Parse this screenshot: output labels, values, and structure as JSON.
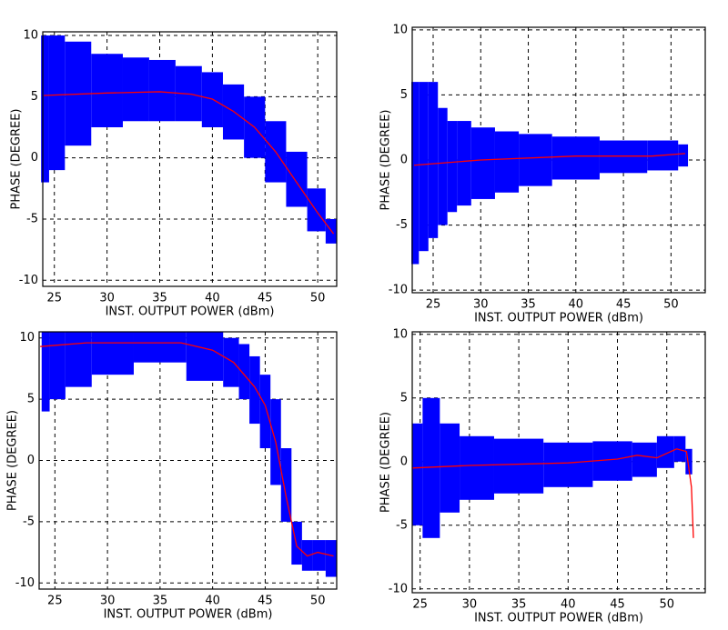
{
  "chart_data": [
    {
      "type": "scatter",
      "x_label": "INST. OUTPUT POWER (dBm)",
      "y_label": "PHASE (DEGREE)",
      "xlim": [
        23.9,
        51.8
      ],
      "ylim": [
        -10.5,
        10.3
      ],
      "xticks": [
        25,
        30,
        35,
        40,
        45,
        50
      ],
      "yticks": [
        -10,
        -5,
        0,
        5,
        10
      ],
      "grid": true,
      "cloud": {
        "color": "#0000ff",
        "x": [
          24,
          25,
          27,
          30,
          33,
          35,
          38,
          40,
          42,
          44,
          46,
          48,
          50,
          51.5
        ],
        "low": [
          -2,
          -1,
          1,
          2.5,
          3,
          3,
          3,
          2.5,
          1.5,
          0,
          -2,
          -4,
          -6,
          -7
        ],
        "high": [
          10,
          10,
          9.5,
          8.5,
          8.2,
          8,
          7.5,
          7,
          6,
          5,
          3,
          0.5,
          -2.5,
          -5
        ]
      },
      "series": [
        {
          "color": "#ff0000",
          "x": [
            24,
            30,
            35,
            38,
            40,
            42,
            44,
            46,
            48,
            50,
            51.5
          ],
          "values": [
            5.1,
            5.3,
            5.4,
            5.2,
            4.8,
            3.8,
            2.5,
            0.5,
            -2,
            -4.5,
            -6.2
          ]
        }
      ]
    },
    {
      "type": "scatter",
      "x_label": "INST. OUTPUT POWER (dBm)",
      "y_label": "PHASE (DEGREE)",
      "xlim": [
        22.8,
        53.6
      ],
      "ylim": [
        -10.2,
        10.2
      ],
      "xticks": [
        25,
        30,
        35,
        40,
        45,
        50
      ],
      "yticks": [
        -10,
        -5,
        0,
        5,
        10
      ],
      "grid": true,
      "cloud": {
        "color": "#0000ff",
        "x": [
          23,
          24,
          25,
          26,
          27,
          28,
          30,
          33,
          35,
          40,
          45,
          50,
          51.5
        ],
        "low": [
          -8,
          -7,
          -6,
          -5,
          -4,
          -3.5,
          -3,
          -2.5,
          -2,
          -1.5,
          -1,
          -0.8,
          -0.5
        ],
        "high": [
          6,
          6,
          6,
          4,
          3,
          3,
          2.5,
          2.2,
          2,
          1.8,
          1.5,
          1.5,
          1.2
        ]
      },
      "series": [
        {
          "color": "#ff0000",
          "x": [
            23,
            30,
            40,
            48,
            51.5
          ],
          "values": [
            -0.4,
            0,
            0.3,
            0.3,
            0.5
          ]
        }
      ]
    },
    {
      "type": "scatter",
      "x_label": "INST. OUTPUT POWER (dBm)",
      "y_label": "PHASE (DEGREE)",
      "xlim": [
        23.5,
        51.8
      ],
      "ylim": [
        -10.5,
        10.5
      ],
      "xticks": [
        25,
        30,
        35,
        40,
        45,
        50
      ],
      "yticks": [
        -10,
        -5,
        0,
        5,
        10
      ],
      "grid": true,
      "cloud": {
        "color": "#0000ff",
        "x": [
          24,
          25,
          27,
          30,
          35,
          40,
          42,
          43,
          44,
          45,
          46,
          47,
          48,
          49,
          50,
          51.5
        ],
        "low": [
          4,
          5,
          6,
          7,
          8,
          6.5,
          6,
          5,
          3,
          1,
          -2,
          -5,
          -8.5,
          -9,
          -9,
          -9.5
        ],
        "high": [
          10.5,
          10.5,
          10.5,
          10.5,
          10.5,
          10.5,
          10,
          9.5,
          8.5,
          7,
          5,
          1,
          -5,
          -6.5,
          -6.5,
          -6.5
        ]
      },
      "series": [
        {
          "color": "#ff0000",
          "x": [
            23.6,
            28,
            37,
            40,
            42,
            44,
            45,
            46,
            47,
            48,
            49,
            50,
            51.5
          ],
          "values": [
            9.3,
            9.6,
            9.6,
            9,
            8,
            6,
            4.5,
            1.5,
            -3,
            -7,
            -7.8,
            -7.5,
            -7.8
          ]
        }
      ]
    },
    {
      "type": "scatter",
      "x_label": "INST. OUTPUT POWER (dBm)",
      "y_label": "PHASE (DEGREE)",
      "xlim": [
        24.2,
        53.9
      ],
      "ylim": [
        -10.3,
        10.2
      ],
      "xticks": [
        25,
        30,
        35,
        40,
        45,
        50
      ],
      "yticks": [
        -10,
        -5,
        0,
        5,
        10
      ],
      "grid": true,
      "cloud": {
        "color": "#0000ff",
        "x": [
          24.5,
          26,
          28,
          30,
          35,
          40,
          45,
          48,
          50,
          51.5,
          52.3
        ],
        "low": [
          -5,
          -6,
          -4,
          -3,
          -2.5,
          -2,
          -1.5,
          -1.2,
          -0.5,
          0,
          -1
        ],
        "high": [
          3,
          5,
          3,
          2,
          1.8,
          1.5,
          1.6,
          1.5,
          2,
          2,
          1
        ]
      },
      "series": [
        {
          "color": "#ff0000",
          "x": [
            24.2,
            30,
            40,
            45,
            47,
            49,
            51,
            52,
            52.5,
            52.7
          ],
          "values": [
            -0.5,
            -0.3,
            -0.1,
            0.2,
            0.5,
            0.3,
            1,
            0.8,
            -2,
            -6
          ]
        }
      ]
    }
  ]
}
